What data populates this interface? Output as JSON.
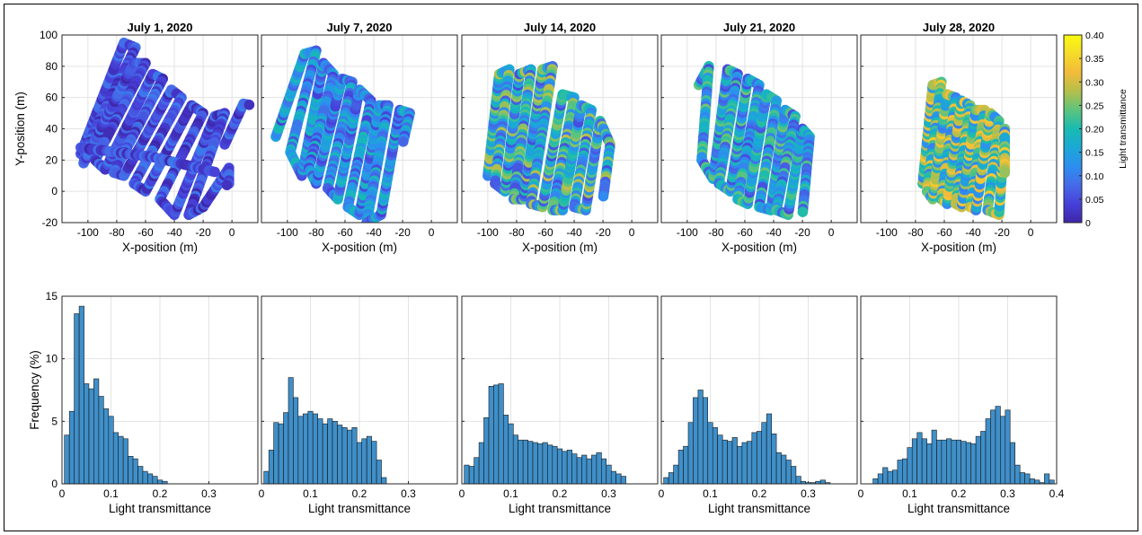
{
  "chart_data": {
    "type": "figure",
    "scatter_panels": [
      {
        "title": "July 1, 2020",
        "xlabel": "X-position (m)",
        "ylabel": "Y-position (m)",
        "xlim": [
          -118,
          18
        ],
        "ylim": [
          -20,
          100
        ],
        "path": [
          [
            -105,
            24
          ],
          [
            -75,
            95
          ],
          [
            -67,
            92
          ],
          [
            -100,
            30
          ],
          [
            -103,
            18
          ],
          [
            -68,
            82
          ],
          [
            -60,
            82
          ],
          [
            -95,
            20
          ],
          [
            -88,
            14
          ],
          [
            -55,
            75
          ],
          [
            -48,
            72
          ],
          [
            -82,
            12
          ],
          [
            -75,
            10
          ],
          [
            -42,
            65
          ],
          [
            -35,
            60
          ],
          [
            -68,
            5
          ],
          [
            -60,
            0
          ],
          [
            -28,
            55
          ],
          [
            -20,
            50
          ],
          [
            -50,
            -5
          ],
          [
            -40,
            -15
          ],
          [
            -12,
            48
          ],
          [
            -5,
            50
          ],
          [
            -30,
            -15
          ],
          [
            -20,
            -10
          ],
          [
            -2,
            15
          ],
          [
            -2,
            5
          ],
          [
            -5,
            3
          ]
        ],
        "cross": [
          [
            -105,
            28
          ],
          [
            -55,
            22
          ],
          [
            -10,
            12
          ]
        ],
        "spur": [
          [
            -5,
            30
          ],
          [
            8,
            56
          ],
          [
            14,
            55
          ]
        ],
        "tx_mean": 0.05,
        "tx_spread": 0.05
      },
      {
        "title": "July 7, 2020",
        "xlabel": "X-position (m)",
        "xlim": [
          -118,
          18
        ],
        "ylim": [
          -20,
          100
        ],
        "path": [
          [
            -108,
            35
          ],
          [
            -88,
            88
          ],
          [
            -80,
            90
          ],
          [
            -98,
            25
          ],
          [
            -90,
            10
          ],
          [
            -75,
            82
          ],
          [
            -68,
            75
          ],
          [
            -85,
            15
          ],
          [
            -80,
            5
          ],
          [
            -62,
            72
          ],
          [
            -55,
            70
          ],
          [
            -72,
            2
          ],
          [
            -65,
            -5
          ],
          [
            -50,
            65
          ],
          [
            -42,
            58
          ],
          [
            -58,
            -10
          ],
          [
            -50,
            -15
          ],
          [
            -36,
            55
          ],
          [
            -30,
            55
          ],
          [
            -45,
            -20
          ],
          [
            -35,
            -15
          ],
          [
            -22,
            52
          ],
          [
            -15,
            50
          ],
          [
            -20,
            30
          ]
        ],
        "tx_mean": 0.12,
        "tx_spread": 0.08
      },
      {
        "title": "July 14, 2020",
        "xlabel": "X-position (m)",
        "xlim": [
          -118,
          18
        ],
        "ylim": [
          -20,
          100
        ],
        "path": [
          [
            -100,
            10
          ],
          [
            -92,
            75
          ],
          [
            -85,
            78
          ],
          [
            -95,
            5
          ],
          [
            -88,
            0
          ],
          [
            -78,
            75
          ],
          [
            -70,
            78
          ],
          [
            -82,
            -5
          ],
          [
            -75,
            -5
          ],
          [
            -62,
            78
          ],
          [
            -55,
            80
          ],
          [
            -70,
            -8
          ],
          [
            -62,
            -10
          ],
          [
            -48,
            62
          ],
          [
            -40,
            60
          ],
          [
            -55,
            -12
          ],
          [
            -48,
            -12
          ],
          [
            -35,
            55
          ],
          [
            -28,
            52
          ],
          [
            -40,
            -10
          ],
          [
            -32,
            -12
          ],
          [
            -22,
            45
          ],
          [
            -15,
            30
          ],
          [
            -20,
            -5
          ]
        ],
        "tx_mean": 0.17,
        "tx_spread": 0.12
      },
      {
        "title": "July 21, 2020",
        "xlabel": "X-position (m)",
        "xlim": [
          -118,
          18
        ],
        "ylim": [
          -20,
          100
        ],
        "path": [
          [
            -92,
            68
          ],
          [
            -85,
            80
          ],
          [
            -90,
            20
          ],
          [
            -82,
            8
          ],
          [
            -72,
            78
          ],
          [
            -65,
            75
          ],
          [
            -78,
            5
          ],
          [
            -70,
            0
          ],
          [
            -58,
            72
          ],
          [
            -50,
            68
          ],
          [
            -65,
            -5
          ],
          [
            -58,
            -8
          ],
          [
            -45,
            62
          ],
          [
            -38,
            58
          ],
          [
            -50,
            -10
          ],
          [
            -42,
            -12
          ],
          [
            -32,
            52
          ],
          [
            -25,
            48
          ],
          [
            -38,
            -12
          ],
          [
            -30,
            -15
          ],
          [
            -20,
            40
          ],
          [
            -15,
            35
          ],
          [
            -20,
            -15
          ]
        ],
        "tx_mean": 0.15,
        "tx_spread": 0.1
      },
      {
        "title": "July 28, 2020",
        "xlabel": "X-position (m)",
        "xlim": [
          -118,
          18
        ],
        "ylim": [
          -20,
          100
        ],
        "path": [
          [
            -75,
            5
          ],
          [
            -68,
            68
          ],
          [
            -62,
            70
          ],
          [
            -72,
            0
          ],
          [
            -68,
            -5
          ],
          [
            -58,
            62
          ],
          [
            -52,
            60
          ],
          [
            -62,
            -5
          ],
          [
            -58,
            -8
          ],
          [
            -48,
            58
          ],
          [
            -42,
            55
          ],
          [
            -52,
            -8
          ],
          [
            -48,
            -10
          ],
          [
            -38,
            52
          ],
          [
            -32,
            52
          ],
          [
            -42,
            -10
          ],
          [
            -38,
            -12
          ],
          [
            -28,
            50
          ],
          [
            -22,
            45
          ],
          [
            -30,
            -12
          ],
          [
            -22,
            -15
          ],
          [
            -18,
            40
          ],
          [
            -18,
            10
          ]
        ],
        "tx_mean": 0.22,
        "tx_spread": 0.12
      }
    ],
    "colorbar": {
      "label": "Light transmittance",
      "min": 0,
      "max": 0.4,
      "ticks": [
        "0",
        "0.05",
        "0.10",
        "0.15",
        "0.20",
        "0.25",
        "0.30",
        "0.35",
        "0.40"
      ],
      "colormap": [
        "#3e26a8",
        "#4640d9",
        "#456be8",
        "#2d8ef0",
        "#1ba8d6",
        "#18bbb1",
        "#5cc47d",
        "#b4bf4b",
        "#f2bb3a",
        "#f5db2a",
        "#f9fb0e"
      ]
    },
    "histograms": [
      {
        "xlabel": "Light transmittance",
        "ylabel": "Frequency (%)",
        "xlim": [
          0,
          0.4
        ],
        "ylim": [
          0,
          15
        ],
        "bin_width": 0.01,
        "bin_start": 0.01,
        "values": [
          3.9,
          5.8,
          13.6,
          14.2,
          8.0,
          7.6,
          8.4,
          7.0,
          6.0,
          5.4,
          4.1,
          3.8,
          3.6,
          2.2,
          2.0,
          1.4,
          1.0,
          0.8,
          0.6,
          0.3,
          0.2
        ]
      },
      {
        "xlabel": "Light transmittance",
        "xlim": [
          0,
          0.4
        ],
        "ylim": [
          0,
          15
        ],
        "bin_width": 0.01,
        "bin_start": 0.01,
        "values": [
          1.0,
          2.7,
          4.9,
          4.8,
          5.7,
          8.5,
          6.9,
          5.4,
          5.6,
          5.8,
          5.6,
          5.2,
          4.8,
          5.2,
          5.0,
          4.7,
          4.5,
          4.3,
          4.5,
          3.3,
          3.6,
          3.8,
          3.4,
          1.9,
          0.5
        ]
      },
      {
        "xlabel": "Light transmittance",
        "xlim": [
          0,
          0.4
        ],
        "ylim": [
          0,
          15
        ],
        "bin_width": 0.01,
        "bin_start": 0.01,
        "values": [
          1.5,
          1.4,
          2.1,
          3.3,
          5.3,
          7.8,
          7.9,
          8.0,
          5.5,
          4.8,
          3.9,
          3.5,
          3.5,
          3.4,
          3.3,
          3.2,
          3.3,
          3.1,
          3.0,
          2.8,
          2.6,
          2.7,
          2.4,
          2.1,
          2.3,
          2.0,
          2.3,
          2.5,
          2.0,
          1.5,
          1.0,
          0.8,
          0.6
        ]
      },
      {
        "xlabel": "Light transmittance",
        "xlim": [
          0,
          0.4
        ],
        "ylim": [
          0,
          15
        ],
        "bin_width": 0.01,
        "bin_start": 0.01,
        "values": [
          0.5,
          0.9,
          1.5,
          2.7,
          3.0,
          4.9,
          6.9,
          7.5,
          6.9,
          4.9,
          4.5,
          3.9,
          3.5,
          3.4,
          3.7,
          3.0,
          3.3,
          3.4,
          4.1,
          4.2,
          4.9,
          5.6,
          4.0,
          2.5,
          2.3,
          1.9,
          1.4,
          0.6,
          0.2,
          0.1,
          0.1,
          0.2,
          0.3,
          0.1
        ]
      },
      {
        "xlabel": "Light transmittance",
        "xlim": [
          0,
          0.4
        ],
        "ylim": [
          0,
          15
        ],
        "bin_width": 0.01,
        "bin_start": 0.03,
        "values": [
          0.4,
          0.8,
          1.3,
          1.0,
          1.1,
          1.9,
          2.0,
          2.9,
          3.6,
          4.1,
          3.6,
          3.2,
          4.3,
          3.5,
          3.5,
          3.6,
          3.5,
          3.5,
          3.4,
          3.3,
          3.2,
          3.8,
          4.2,
          5.2,
          5.9,
          6.2,
          5.4,
          5.9,
          3.3,
          1.5,
          0.9,
          0.8,
          0.4,
          0.3,
          0.1,
          0.8,
          0.3
        ]
      }
    ],
    "hist_xticks": [
      "0",
      "0.1",
      "0.2",
      "0.3"
    ],
    "hist_xticks_last": [
      "0",
      "0.1",
      "0.2",
      "0.3",
      "0.4"
    ],
    "hist_yticks": [
      "0",
      "5",
      "10",
      "15"
    ],
    "scatter_xticks": [
      "-100",
      "-80",
      "-60",
      "-40",
      "-20",
      "0"
    ],
    "scatter_yticks": [
      "-20",
      "0",
      "20",
      "40",
      "60",
      "80",
      "100"
    ],
    "bar_color": "#3f8fc9",
    "grid": true
  }
}
